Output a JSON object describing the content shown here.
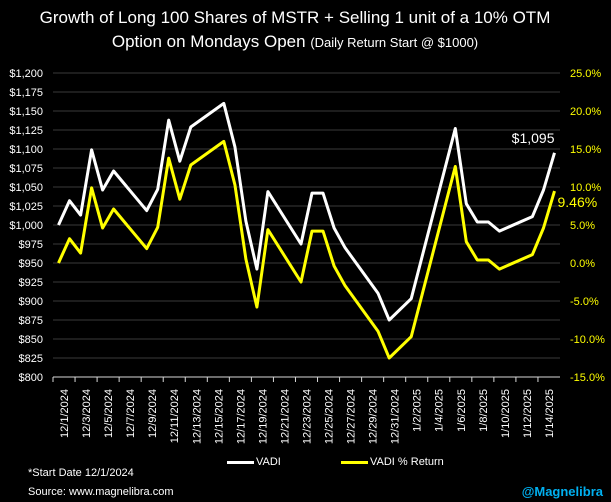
{
  "chart_data": {
    "type": "line",
    "title_line1": "Growth of Long 100 Shares of MSTR + Selling 1 unit of a 10% OTM",
    "title_line2": "Option on Mondays Open",
    "subtitle": "(Daily Return Start @ $1000)",
    "x": [
      "12/1/2024",
      "12/2/2024",
      "12/3/2024",
      "12/4/2024",
      "12/5/2024",
      "12/6/2024",
      "12/9/2024",
      "12/10/2024",
      "12/11/2024",
      "12/12/2024",
      "12/13/2024",
      "12/16/2024",
      "12/17/2024",
      "12/18/2024",
      "12/19/2024",
      "12/20/2024",
      "12/23/2024",
      "12/24/2024",
      "12/25/2024",
      "12/26/2024",
      "12/27/2024",
      "12/30/2024",
      "12/31/2024",
      "1/2/2025",
      "1/6/2025",
      "1/7/2025",
      "1/8/2025",
      "1/9/2025",
      "1/10/2025",
      "1/13/2025",
      "1/14/2025",
      "1/15/2025"
    ],
    "x_tick_labels": [
      "12/1/2024",
      "12/3/2024",
      "12/5/2024",
      "12/7/2024",
      "12/9/2024",
      "12/11/2024",
      "12/13/2024",
      "12/15/2024",
      "12/17/2024",
      "12/19/2024",
      "12/21/2024",
      "12/23/2024",
      "12/25/2024",
      "12/27/2024",
      "12/29/2024",
      "12/31/2024",
      "1/2/2025",
      "1/4/2025",
      "1/6/2025",
      "1/8/2025",
      "1/10/2025",
      "1/12/2025",
      "1/14/2025"
    ],
    "series": [
      {
        "name": "VADI",
        "axis": "left",
        "color": "#ffffff",
        "values": [
          1000,
          1032,
          1013,
          1099,
          1046,
          1071,
          1019,
          1047,
          1138,
          1084,
          1129,
          1160,
          1103,
          1005,
          942,
          1044,
          975,
          1042,
          1042,
          996,
          970,
          910,
          875,
          903,
          1127,
          1028,
          1004,
          1004,
          992,
          1011,
          1046,
          1095
        ]
      },
      {
        "name": "VADI % Return",
        "axis": "right",
        "color": "#ffff00",
        "values": [
          0.0,
          3.2,
          1.3,
          9.9,
          4.6,
          7.1,
          1.9,
          4.7,
          13.8,
          8.4,
          12.9,
          16.0,
          10.3,
          0.5,
          -5.8,
          4.4,
          -2.5,
          4.2,
          4.2,
          -0.4,
          -3.0,
          -9.0,
          -12.5,
          -9.7,
          12.7,
          2.8,
          0.4,
          0.4,
          -0.8,
          1.1,
          4.6,
          9.46
        ]
      }
    ],
    "y_left": {
      "lim": [
        800,
        1200
      ],
      "ticks": [
        "$800",
        "$825",
        "$850",
        "$875",
        "$900",
        "$925",
        "$950",
        "$975",
        "$1,000",
        "$1,025",
        "$1,050",
        "$1,075",
        "$1,100",
        "$1,125",
        "$1,150",
        "$1,175",
        "$1,200"
      ]
    },
    "y_right": {
      "lim": [
        -15,
        25
      ],
      "ticks": [
        "-15.0%",
        "-10.0%",
        "-5.0%",
        "0.0%",
        "5.0%",
        "10.0%",
        "15.0%",
        "20.0%",
        "25.0%"
      ]
    },
    "annotations": {
      "last_value": "$1,095",
      "last_return": "9.46%"
    },
    "grid": true,
    "legend_position": "bottom"
  },
  "footer": {
    "note": "*Start Date 12/1/2024",
    "source": "Source: www.magnelibra.com",
    "handle": "@Magnelibra"
  }
}
